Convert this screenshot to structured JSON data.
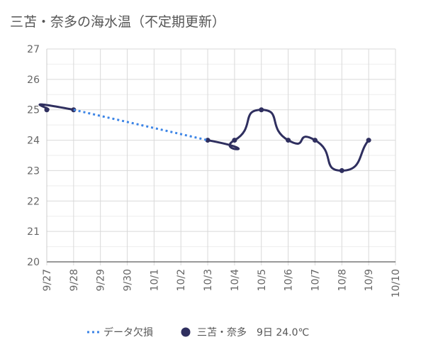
{
  "chart_data": {
    "type": "line",
    "title": "三苫・奈多の海水温（不定期更新）",
    "xlabel": "",
    "ylabel": "",
    "x_categories": [
      "9/27",
      "9/28",
      "9/29",
      "9/30",
      "10/1",
      "10/2",
      "10/3",
      "10/4",
      "10/5",
      "10/6",
      "10/7",
      "10/8",
      "10/9",
      "10/10"
    ],
    "ylim": [
      20,
      27
    ],
    "yticks": [
      20,
      21,
      22,
      23,
      24,
      25,
      26,
      27
    ],
    "grid": true,
    "legend_position": "bottom",
    "series": [
      {
        "name": "三苫・奈多　9日 24.0℃",
        "style": "solid-smooth",
        "color": "#2f2f5f",
        "points": [
          {
            "x": "9/27",
            "y": 25
          },
          {
            "x": "9/28",
            "y": 25
          },
          {
            "x": "10/3",
            "y": 24
          },
          {
            "x": "10/4",
            "y": 24
          },
          {
            "x": "10/5",
            "y": 25
          },
          {
            "x": "10/6",
            "y": 24
          },
          {
            "x": "10/7",
            "y": 24
          },
          {
            "x": "10/8",
            "y": 23
          },
          {
            "x": "10/9",
            "y": 24
          }
        ]
      },
      {
        "name": "データ欠損",
        "style": "dotted",
        "color": "#3d85e6",
        "points": [
          {
            "x": "9/28",
            "y": 25
          },
          {
            "x": "10/3",
            "y": 24
          }
        ]
      }
    ]
  }
}
